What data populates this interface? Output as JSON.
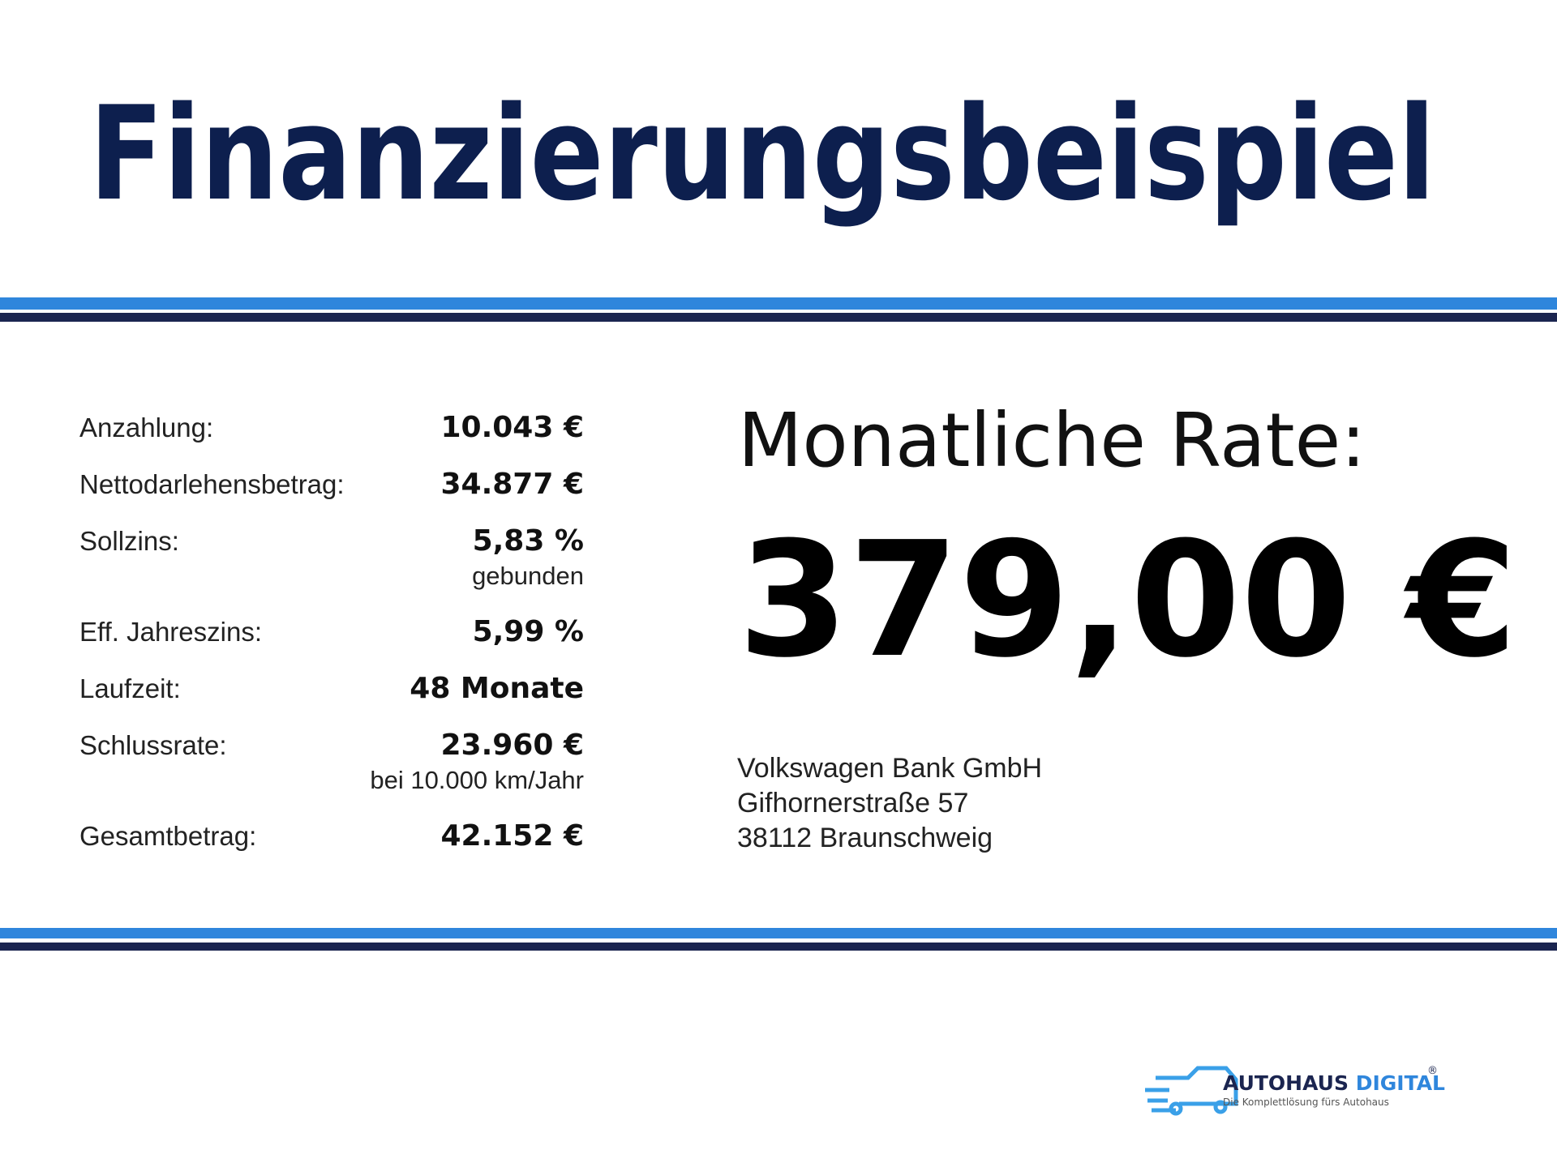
{
  "header": {
    "title": "Finanzierungsbeispiel"
  },
  "financing": {
    "rows": [
      {
        "label": "Anzahlung:",
        "value": "10.043 €"
      },
      {
        "label": "Nettodarlehensbetrag:",
        "value": "34.877 €"
      },
      {
        "label": "Sollzins:",
        "value": "5,83 %",
        "note": "gebunden"
      },
      {
        "label": "Eff. Jahreszins:",
        "value": "5,99 %"
      },
      {
        "label": "Laufzeit:",
        "value": "48 Monate"
      },
      {
        "label": "Schlussrate:",
        "value": "23.960 €",
        "note": "bei 10.000 km/Jahr"
      },
      {
        "label": "Gesamtbetrag:",
        "value": "42.152 €"
      }
    ]
  },
  "rate": {
    "label": "Monatliche Rate:",
    "amount": "379,00 €"
  },
  "bank": {
    "lines": [
      "Volkswagen Bank GmbH",
      "Gifhornerstraße 57",
      "38112 Braunschweig"
    ]
  },
  "logo": {
    "name_dark": "AUTOHAUS",
    "name_blue": "DIGITAL",
    "registered": "®",
    "tagline": "Die Komplettlösung fürs Autohaus"
  }
}
